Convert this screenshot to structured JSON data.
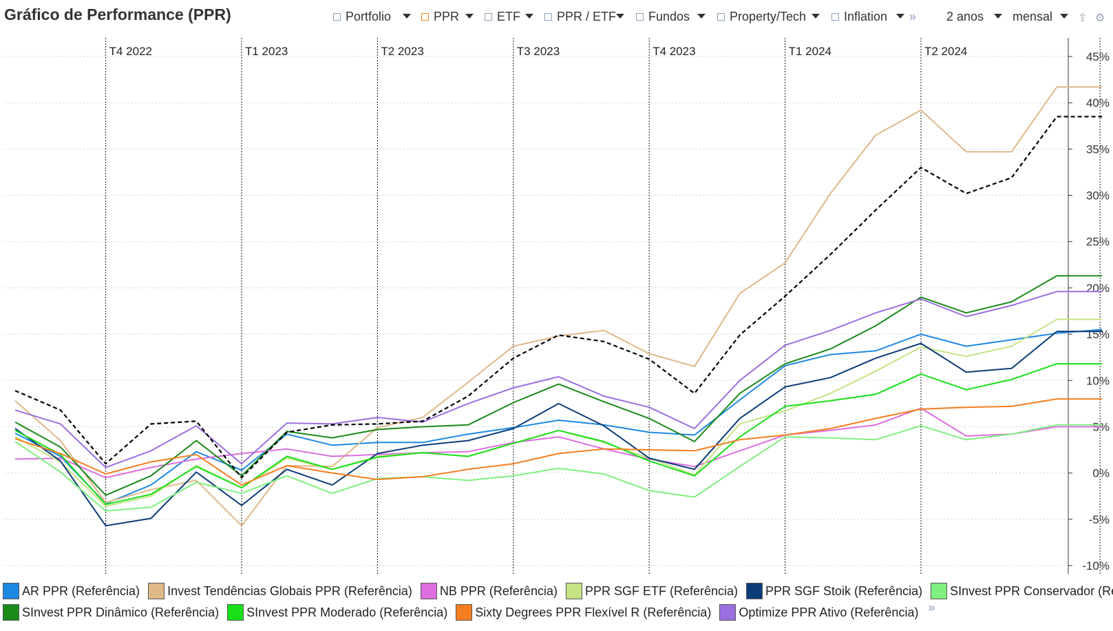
{
  "title": "Gráfico de Performance (PPR)",
  "toolbar": {
    "items": [
      {
        "label": "Portfolio",
        "checked": false
      },
      {
        "label": "PPR",
        "checked": true
      },
      {
        "label": "ETF",
        "checked": false
      },
      {
        "label": "PPR / ETF",
        "checked": false
      },
      {
        "label": "Fundos",
        "checked": false
      },
      {
        "label": "Property/Tech",
        "checked": false
      },
      {
        "label": "Inflation",
        "checked": false
      }
    ],
    "more_glyph": "»",
    "period": "2 anos",
    "frequency": "mensal",
    "export_glyph": "⇪",
    "settings_glyph": "⚙",
    "accent_color": "#f08c1e"
  },
  "legend_more_glyph": "»",
  "chart_data": {
    "type": "line",
    "x_ticks": [
      "T4 2022",
      "T1 2023",
      "T2 2023",
      "T3 2023",
      "T4 2023",
      "T1 2024",
      "T2 2024"
    ],
    "x_months": [
      "2022-08",
      "2022-09",
      "2022-10",
      "2022-11",
      "2022-12",
      "2023-01",
      "2023-02",
      "2023-03",
      "2023-04",
      "2023-05",
      "2023-06",
      "2023-07",
      "2023-08",
      "2023-09",
      "2023-10",
      "2023-11",
      "2023-12",
      "2024-01",
      "2024-02",
      "2024-03",
      "2024-04",
      "2024-05",
      "2024-06",
      "2024-07",
      "2024-08"
    ],
    "y_ticks": [
      "45%",
      "40%",
      "35%",
      "30%",
      "25%",
      "20%",
      "15%",
      "10%",
      "5%",
      "0%",
      "-5%",
      "-10%"
    ],
    "ylim": [
      -10,
      45
    ],
    "y_axis_position": "right",
    "grid": true,
    "legend_position": "bottom",
    "series": [
      {
        "name": "AR PPR (Referência)",
        "color": "#1e88e5",
        "values": [
          4.3,
          1.8,
          -3.3,
          -1.3,
          2.3,
          0.3,
          4.2,
          3.0,
          3.3,
          3.3,
          4.2,
          4.9,
          5.7,
          5.2,
          4.4,
          4.1,
          7.9,
          11.6,
          12.8,
          13.2,
          15.0,
          13.7,
          14.4,
          15.1,
          15.5
        ]
      },
      {
        "name": "Invest Tendências Globais PPR (Referência)",
        "color": "#deb887",
        "values": [
          7.8,
          3.5,
          -3.2,
          -1.8,
          -0.8,
          -5.7,
          0.8,
          0.7,
          4.9,
          6.0,
          9.8,
          13.7,
          14.8,
          15.4,
          12.9,
          11.5,
          19.4,
          22.7,
          30.2,
          36.5,
          39.2,
          34.7,
          34.7,
          41.7,
          41.7
        ]
      },
      {
        "name": "NB PPR (Referência)",
        "color": "#dd6ee0",
        "values": [
          1.5,
          1.6,
          -0.5,
          0.6,
          1.5,
          2.1,
          2.6,
          1.8,
          2.0,
          2.2,
          2.3,
          3.3,
          3.9,
          2.6,
          1.5,
          0.7,
          2.4,
          4.1,
          4.6,
          5.2,
          7.0,
          4.0,
          4.2,
          5.0,
          5.0
        ]
      },
      {
        "name": "PPR SGF ETF (Referência)",
        "color": "#c5e384",
        "values": [
          3.9,
          1.2,
          -3.6,
          -2.5,
          0.8,
          -1.6,
          1.6,
          0.4,
          1.8,
          2.2,
          1.8,
          3.2,
          4.6,
          3.3,
          1.6,
          -0.2,
          5.3,
          6.7,
          8.6,
          11.0,
          13.6,
          12.6,
          13.7,
          16.6,
          16.6
        ]
      },
      {
        "name": "PPR SGF Stoik (Referência)",
        "color": "#0c3c78",
        "values": [
          4.8,
          1.3,
          -5.7,
          -4.9,
          0.1,
          -3.5,
          0.4,
          -1.3,
          2.1,
          3.0,
          3.5,
          4.8,
          7.5,
          5.1,
          1.6,
          0.4,
          5.9,
          9.3,
          10.3,
          12.4,
          14.0,
          10.9,
          11.3,
          15.3,
          15.3
        ]
      },
      {
        "name": "SInvest PPR Conservador (Referência)",
        "color": "#7fef7f",
        "values": [
          3.4,
          0.1,
          -4.1,
          -3.7,
          -1.0,
          -2.2,
          -0.3,
          -2.2,
          -0.6,
          -0.4,
          -0.8,
          -0.3,
          0.5,
          -0.1,
          -1.9,
          -2.6,
          0.7,
          3.9,
          3.8,
          3.6,
          5.1,
          3.6,
          4.2,
          5.2,
          5.2
        ]
      },
      {
        "name": "SInvest PPR Dinâmico (Referência)",
        "color": "#1a8a1a",
        "values": [
          5.5,
          2.8,
          -2.4,
          -0.3,
          3.5,
          -0.3,
          4.5,
          3.8,
          4.7,
          5.0,
          5.2,
          7.6,
          9.6,
          7.7,
          5.9,
          3.4,
          8.6,
          11.8,
          13.4,
          15.9,
          19.0,
          17.3,
          18.5,
          21.3,
          21.3
        ]
      },
      {
        "name": "SInvest PPR Moderado (Referência)",
        "color": "#18e018",
        "values": [
          4.6,
          2.0,
          -3.4,
          -2.3,
          0.7,
          -1.6,
          1.8,
          0.4,
          1.7,
          2.2,
          1.8,
          3.2,
          4.6,
          3.4,
          1.3,
          -0.3,
          3.9,
          7.2,
          7.8,
          8.5,
          10.7,
          9.0,
          10.1,
          11.8,
          11.8
        ]
      },
      {
        "name": "Sixty Degrees PPR Flexível R (Referência)",
        "color": "#f57e20",
        "values": [
          3.7,
          2.1,
          -0.1,
          1.2,
          2.0,
          -1.3,
          0.8,
          0.0,
          -0.7,
          -0.4,
          0.4,
          1.0,
          2.1,
          2.6,
          2.5,
          2.4,
          3.6,
          4.1,
          4.8,
          5.9,
          6.9,
          7.1,
          7.2,
          8.0,
          8.0
        ]
      },
      {
        "name": "Optimize PPR Ativo (Referência)",
        "color": "#9b6fe0",
        "values": [
          6.8,
          5.3,
          0.6,
          2.4,
          5.1,
          1.0,
          5.4,
          5.3,
          6.0,
          5.5,
          7.5,
          9.2,
          10.4,
          8.3,
          7.1,
          4.8,
          10.0,
          13.8,
          15.4,
          17.3,
          18.8,
          16.9,
          18.1,
          19.6,
          19.6
        ]
      },
      {
        "color": "#000000",
        "dashed": true,
        "values": [
          8.9,
          6.8,
          1.0,
          5.3,
          5.6,
          -0.5,
          4.4,
          5.2,
          5.3,
          5.6,
          8.3,
          12.4,
          14.9,
          14.2,
          12.3,
          8.6,
          14.9,
          19.1,
          23.6,
          28.4,
          33.0,
          30.2,
          31.9,
          38.5,
          38.5
        ]
      }
    ]
  }
}
